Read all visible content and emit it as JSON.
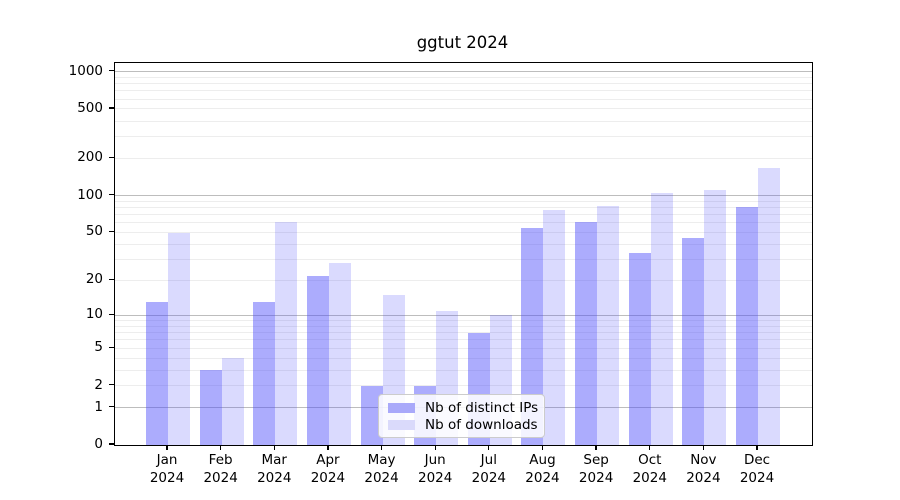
{
  "chart_data": {
    "type": "bar",
    "title": "ggtut 2024",
    "categories": [
      "Jan",
      "Feb",
      "Mar",
      "Apr",
      "May",
      "Jun",
      "Jul",
      "Aug",
      "Sep",
      "Oct",
      "Nov",
      "Dec"
    ],
    "x_year_line": "2024",
    "series": [
      {
        "name": "Nb of distinct IPs",
        "color": "#a9a9fa",
        "fill": "rgba(70,70,250,0.45)",
        "values": [
          13,
          3,
          13,
          22,
          2,
          2,
          7,
          54,
          61,
          34,
          45,
          81
        ]
      },
      {
        "name": "Nb of downloads",
        "color": "#dadafb",
        "fill": "rgba(70,70,250,0.20)",
        "values": [
          50,
          4,
          61,
          28,
          15,
          11,
          10,
          77,
          82,
          105,
          111,
          168
        ]
      }
    ],
    "yscale": "log1p",
    "yticks": [
      0,
      1,
      2,
      5,
      10,
      20,
      50,
      100,
      200,
      500,
      1000
    ],
    "ylim": [
      0,
      1170
    ],
    "grid": {
      "axis": "y",
      "major_color": "#bdbdbd",
      "minor_color": "#ededed"
    },
    "legend_position": "inside lower center-right"
  }
}
